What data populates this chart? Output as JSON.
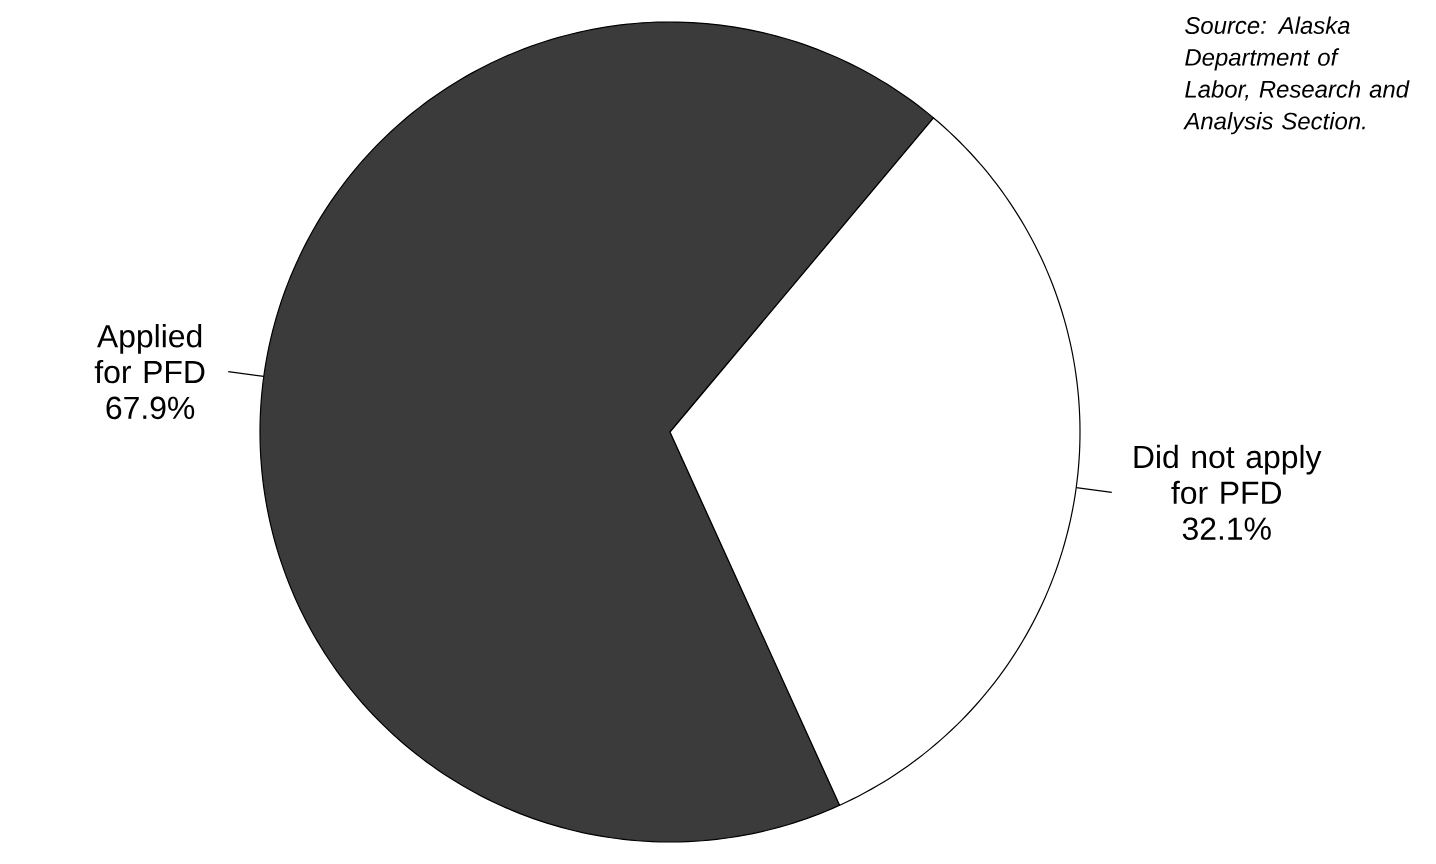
{
  "chart_data": {
    "type": "pie",
    "categories": [
      "Applied for PFD",
      "Did not apply for PFD"
    ],
    "values": [
      67.9,
      32.1
    ],
    "value_labels": [
      "67.9%",
      "32.1%"
    ],
    "colors": [
      "#3b3b3b",
      "#ffffff"
    ],
    "annotations": [
      "Source: Alaska Department of Labor, Research and Analysis Section."
    ]
  }
}
